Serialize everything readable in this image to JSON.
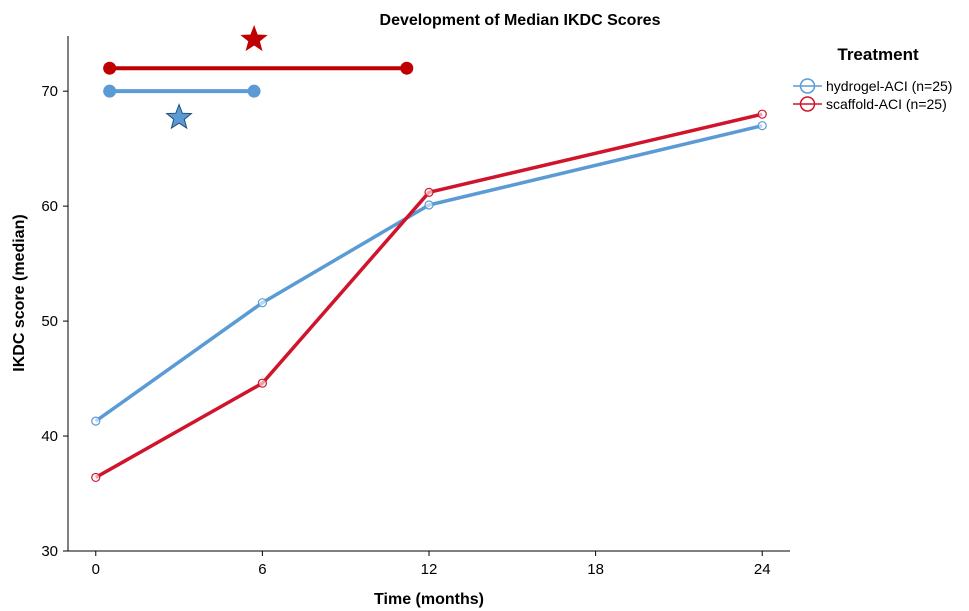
{
  "chart_data": {
    "type": "line",
    "title": "Development of Median IKDC Scores",
    "xlabel": "Time (months)",
    "ylabel": "IKDC score (median)",
    "x": [
      0,
      6,
      12,
      24
    ],
    "xticks": [
      "0",
      "6",
      "12",
      "18",
      "24"
    ],
    "xtick_values": [
      0,
      6,
      12,
      18,
      24
    ],
    "yticks": [
      "30",
      "40",
      "50",
      "60",
      "70"
    ],
    "ytick_values": [
      30,
      40,
      50,
      60,
      70
    ],
    "xlim": [
      -1,
      25
    ],
    "ylim": [
      30,
      74.8
    ],
    "grid": false,
    "legend": {
      "title": "Treatment",
      "position": "top-right"
    },
    "series": [
      {
        "name": "hydrogel-ACI (n=25)",
        "color": "#5b9bd5",
        "values": [
          41.3,
          51.6,
          60.1,
          67.0
        ]
      },
      {
        "name": "scaffold-ACI (n=25)",
        "color": "#d0142c",
        "values": [
          36.4,
          44.6,
          61.2,
          68.0
        ]
      }
    ],
    "significance_annotations": [
      {
        "series": "scaffold-ACI (n=25)",
        "x_start": 0.5,
        "x_end": 11.2,
        "y": 72,
        "color": "#c00000",
        "marker": "star",
        "star_x": 5.7,
        "star_y": 74.5
      },
      {
        "series": "hydrogel-ACI (n=25)",
        "x_start": 0.5,
        "x_end": 5.7,
        "y": 70,
        "color": "#5b9bd5",
        "marker": "star",
        "star_x": 3.0,
        "star_y": 67.7
      }
    ]
  }
}
